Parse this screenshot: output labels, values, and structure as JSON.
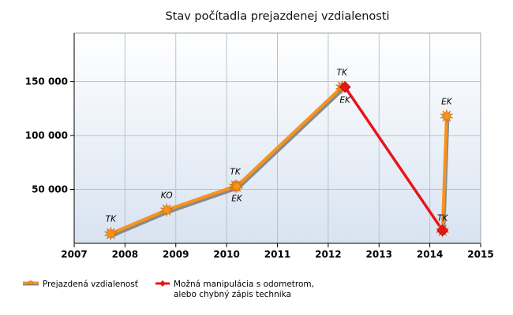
{
  "chart_data": {
    "type": "line",
    "title": "Stav počítadla prejazdenej vzdialenosti",
    "xlabel": "",
    "ylabel": "",
    "xlim": [
      2007,
      2015
    ],
    "ylim": [
      0,
      195000
    ],
    "x_ticks": [
      "2007",
      "2008",
      "2009",
      "2010",
      "2011",
      "2012",
      "2013",
      "2014",
      "2015"
    ],
    "y_ticks": [
      {
        "value": 50000,
        "label": "50 000"
      },
      {
        "value": 100000,
        "label": "100 000"
      },
      {
        "value": 150000,
        "label": "150 000"
      }
    ],
    "grid": true,
    "series": [
      {
        "name": "Prejazdená vzdialenosť",
        "color": "#F7931E",
        "shadow": "#8A8A8A",
        "marker": "star",
        "segments": [
          [
            {
              "x": 2007.72,
              "y": 9000,
              "label": "TK"
            },
            {
              "x": 2008.82,
              "y": 31000,
              "label": "KO"
            },
            {
              "x": 2010.17,
              "y": 53000,
              "label": "TK"
            },
            {
              "x": 2010.2,
              "y": 53000,
              "label": "EK"
            },
            {
              "x": 2012.27,
              "y": 145000,
              "label": "TK"
            }
          ],
          [
            {
              "x": 2014.25,
              "y": 12000,
              "label": ""
            },
            {
              "x": 2014.33,
              "y": 118000,
              "label": "EK"
            }
          ]
        ]
      },
      {
        "name": "Možná manipulácia s odometrom,\nalebo chybný zápis technika",
        "color": "#E8141B",
        "marker": "diamond",
        "segments": [
          [
            {
              "x": 2012.33,
              "y": 145000,
              "label": "EK"
            },
            {
              "x": 2014.25,
              "y": 12000,
              "label": "TK"
            }
          ]
        ]
      }
    ]
  }
}
